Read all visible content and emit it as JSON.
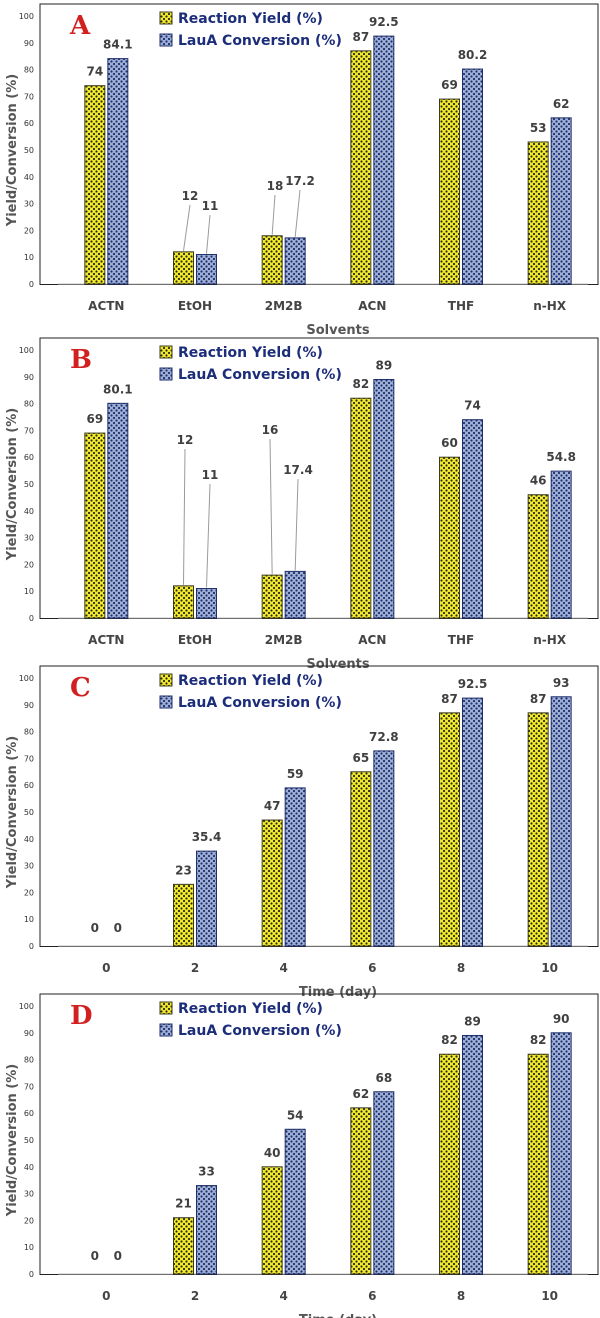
{
  "colors": {
    "yield_fill": "#f4ec2a",
    "yield_dot": "#2a2a1a",
    "conversion_fill": "#9fb0d8",
    "conversion_dot": "#1f2f6a",
    "leader_line": "#9a9a9a",
    "panel_letter": "#d21f1f",
    "legend_text": "#1c2d7a"
  },
  "chart_data": [
    {
      "panel": "A",
      "type": "bar",
      "categories": [
        "ACTN",
        "EtOH",
        "2M2B",
        "ACN",
        "THF",
        "n-HX"
      ],
      "series": [
        {
          "name": "Reaction Yield (%)",
          "values": [
            74,
            12,
            18,
            87,
            69,
            53
          ]
        },
        {
          "name": "LauA Conversion (%)",
          "values": [
            84.1,
            11,
            17.2,
            92.5,
            80.2,
            62
          ]
        }
      ],
      "data_labels": [
        [
          "74",
          "12",
          "18",
          "87",
          "69",
          "53"
        ],
        [
          "84.1",
          "11",
          "17.2",
          "92.5",
          "80.2",
          "62"
        ]
      ],
      "xlabel": "Solvents",
      "ylabel": "Yield/Conversion (%)",
      "ylim": [
        0,
        100
      ],
      "yticks": [
        "0",
        "10",
        "20",
        "30",
        "40",
        "50",
        "60",
        "70",
        "80",
        "90",
        "100"
      ],
      "legend": "top-left",
      "grid": false
    },
    {
      "panel": "B",
      "type": "bar",
      "categories": [
        "ACTN",
        "EtOH",
        "2M2B",
        "ACN",
        "THF",
        "n-HX"
      ],
      "series": [
        {
          "name": "Reaction Yield (%)",
          "values": [
            69,
            12,
            16,
            82,
            60,
            46
          ]
        },
        {
          "name": "LauA Conversion (%)",
          "values": [
            80.1,
            11,
            17.4,
            89,
            74,
            54.8
          ]
        }
      ],
      "data_labels": [
        [
          "69",
          "12",
          "16",
          "82",
          "60",
          "46"
        ],
        [
          "80.1",
          "11",
          "17.4",
          "89",
          "74",
          "54.8"
        ]
      ],
      "xlabel": "Solvents",
      "ylabel": "Yield/Conversion (%)",
      "ylim": [
        0,
        100
      ],
      "yticks": [
        "0",
        "10",
        "20",
        "30",
        "40",
        "50",
        "60",
        "70",
        "80",
        "90",
        "100"
      ],
      "legend": "top-left",
      "grid": false
    },
    {
      "panel": "C",
      "type": "bar",
      "categories": [
        "0",
        "2",
        "4",
        "6",
        "8",
        "10"
      ],
      "series": [
        {
          "name": "Reaction Yield (%)",
          "values": [
            0,
            23,
            47,
            65,
            87,
            87
          ]
        },
        {
          "name": "LauA Conversion (%)",
          "values": [
            0,
            35.4,
            59,
            72.8,
            92.5,
            93
          ]
        }
      ],
      "data_labels": [
        [
          "0",
          "23",
          "47",
          "65",
          "87",
          "87"
        ],
        [
          "0",
          "35.4",
          "59",
          "72.8",
          "92.5",
          "93"
        ]
      ],
      "xlabel": "Time (day)",
      "ylabel": "Yield/Conversion (%)",
      "ylim": [
        0,
        100
      ],
      "yticks": [
        "0",
        "10",
        "20",
        "30",
        "40",
        "50",
        "60",
        "70",
        "80",
        "90",
        "100"
      ],
      "legend": "top-left",
      "grid": false
    },
    {
      "panel": "D",
      "type": "bar",
      "categories": [
        "0",
        "2",
        "4",
        "6",
        "8",
        "10"
      ],
      "series": [
        {
          "name": "Reaction Yield (%)",
          "values": [
            0,
            21,
            40,
            62,
            82,
            82
          ]
        },
        {
          "name": "LauA Conversion (%)",
          "values": [
            0,
            33,
            54,
            68,
            89,
            90
          ]
        }
      ],
      "data_labels": [
        [
          "0",
          "21",
          "40",
          "62",
          "82",
          "82"
        ],
        [
          "0",
          "33",
          "54",
          "68",
          "89",
          "90"
        ]
      ],
      "xlabel": "Time (day)",
      "ylabel": "Yield/Conversion (%)",
      "ylim": [
        0,
        100
      ],
      "yticks": [
        "0",
        "10",
        "20",
        "30",
        "40",
        "50",
        "60",
        "70",
        "80",
        "90",
        "100"
      ],
      "legend": "top-left",
      "grid": false
    }
  ]
}
